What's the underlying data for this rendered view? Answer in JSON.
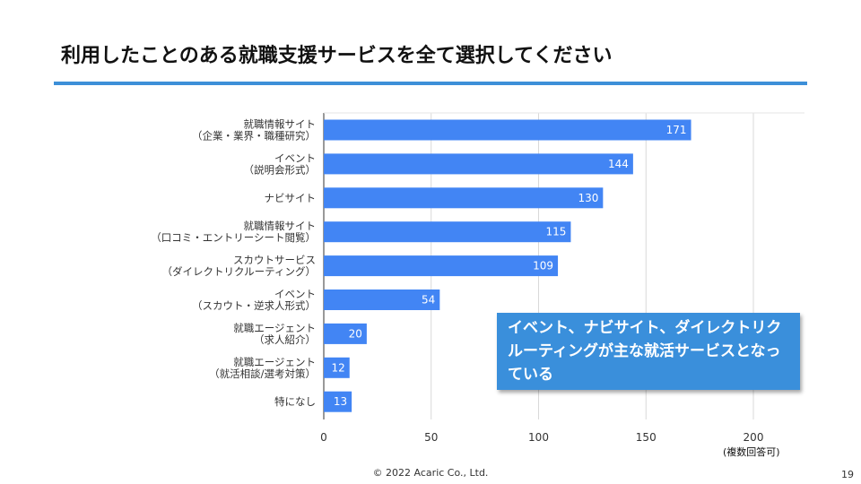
{
  "slide": {
    "title": "利用したことのある就職支援サービスを全て選択してください",
    "callout": "イベント、ナビサイト、ダイレクトリクルーティングが主な就活サービスとなっている",
    "note": "(複数回答可)",
    "copyright": "© 2022 Acaric Co., Ltd.",
    "page_number": "19"
  },
  "chart_data": {
    "type": "bar",
    "orientation": "horizontal",
    "categories": [
      [
        "就職情報サイト",
        "（企業・業界・職種研究）"
      ],
      [
        "イベント",
        "（説明会形式）"
      ],
      [
        "ナビサイト"
      ],
      [
        "就職情報サイト",
        "（口コミ・エントリーシート閲覧）"
      ],
      [
        "スカウトサービス",
        "（ダイレクトリクルーティング）"
      ],
      [
        "イベント",
        "（スカウト・逆求人形式）"
      ],
      [
        "就職エージェント",
        "（求人紹介）"
      ],
      [
        "就職エージェント",
        "（就活相談/選考対策）"
      ],
      [
        "特になし"
      ]
    ],
    "values": [
      171,
      144,
      130,
      115,
      109,
      54,
      20,
      12,
      13
    ],
    "xlim": [
      0,
      225
    ],
    "xticks": [
      0,
      50,
      100,
      150,
      200
    ],
    "grid": true,
    "bar_color": "#4285f4"
  }
}
